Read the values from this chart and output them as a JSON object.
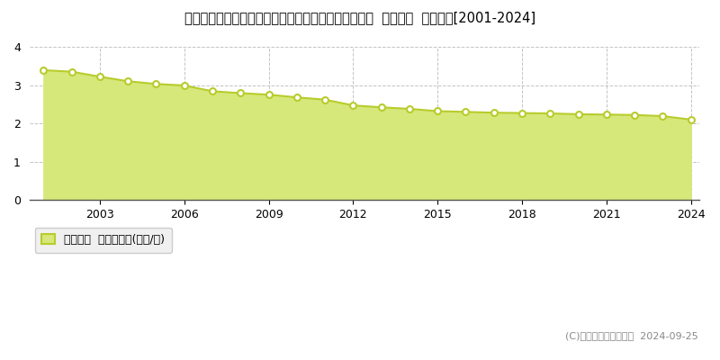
{
  "title": "福島県東白川郡鮫川村大字赤坂中野字道少田１８番１  基準地価  地価推移[2001-2024]",
  "years": [
    2001,
    2002,
    2003,
    2004,
    2005,
    2006,
    2007,
    2008,
    2009,
    2010,
    2011,
    2012,
    2013,
    2014,
    2015,
    2016,
    2017,
    2018,
    2019,
    2020,
    2021,
    2022,
    2023,
    2024
  ],
  "values": [
    3.39,
    3.35,
    3.22,
    3.1,
    3.03,
    2.99,
    2.84,
    2.79,
    2.75,
    2.68,
    2.62,
    2.47,
    2.42,
    2.38,
    2.32,
    2.3,
    2.28,
    2.27,
    2.26,
    2.24,
    2.23,
    2.22,
    2.19,
    2.1
  ],
  "line_color": "#b8cc2c",
  "fill_color": "#d6e87a",
  "fill_alpha": 1.0,
  "marker_face": "#ffffff",
  "marker_edge": "#b8cc2c",
  "bg_color": "#ffffff",
  "grid_color": "#aaaaaa",
  "ylim": [
    0,
    4
  ],
  "yticks": [
    0,
    1,
    2,
    3,
    4
  ],
  "xticks": [
    2003,
    2006,
    2009,
    2012,
    2015,
    2018,
    2021,
    2024
  ],
  "legend_label": "基準地価  平均坪単価(万円/坪)",
  "copyright": "(C)土地価格ドットコム  2024-09-25",
  "title_fontsize": 10.5,
  "axis_fontsize": 9,
  "legend_fontsize": 9
}
